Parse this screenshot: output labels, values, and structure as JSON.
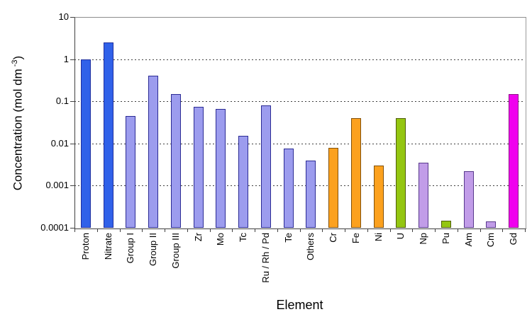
{
  "figure": {
    "xlabel": "Element",
    "ylabel": {
      "prefix": "Concentration (mol dm",
      "sup": "-3",
      "suffix": ")"
    }
  },
  "chart_data": {
    "type": "bar",
    "title": "",
    "xlabel": "Element",
    "ylabel": "Concentration (mol dm^-3)",
    "yscale": "log",
    "ylim": [
      0.0001,
      10
    ],
    "y_tick_labels": [
      "10",
      "1",
      "0.1",
      "0.01",
      "0.001",
      "0.0001"
    ],
    "y_tick_values": [
      10,
      1,
      0.1,
      0.01,
      0.001,
      0.0001
    ],
    "gridline_values": [
      1,
      0.1,
      0.01,
      0.001
    ],
    "grid": "horizontal-dashed",
    "legend": "none",
    "categories": [
      "Proton",
      "Nitrate",
      "Group I",
      "Group II",
      "Group III",
      "Zr",
      "Mo",
      "Tc",
      "Ru / Rh / Pd",
      "Te",
      "Others",
      "Cr",
      "Fe",
      "Ni",
      "U",
      "Np",
      "Pu",
      "Am",
      "Cm",
      "Gd"
    ],
    "values": [
      1.0,
      2.5,
      0.045,
      0.4,
      0.15,
      0.075,
      0.065,
      0.015,
      0.08,
      0.0075,
      0.004,
      0.008,
      0.04,
      0.003,
      0.04,
      0.0035,
      0.00015,
      0.0022,
      0.00014,
      0.15
    ],
    "bar_groups": [
      "blue",
      "blue",
      "periwinkle",
      "periwinkle",
      "periwinkle",
      "periwinkle",
      "periwinkle",
      "periwinkle",
      "periwinkle",
      "periwinkle",
      "periwinkle",
      "orange",
      "orange",
      "orange",
      "green",
      "lilac",
      "green",
      "lilac",
      "lilac",
      "magenta"
    ],
    "palette": {
      "blue": {
        "fill": "#3061E9",
        "border": "#1F2F9E"
      },
      "periwinkle": {
        "fill": "#9C9CEE",
        "border": "#2B2B94"
      },
      "orange": {
        "fill": "#FCA11E",
        "border": "#82500A"
      },
      "green": {
        "fill": "#94C611",
        "border": "#4F5D0B"
      },
      "lilac": {
        "fill": "#C19CE8",
        "border": "#58398C"
      },
      "magenta": {
        "fill": "#F000EE",
        "border": "#8F0D88"
      }
    }
  }
}
